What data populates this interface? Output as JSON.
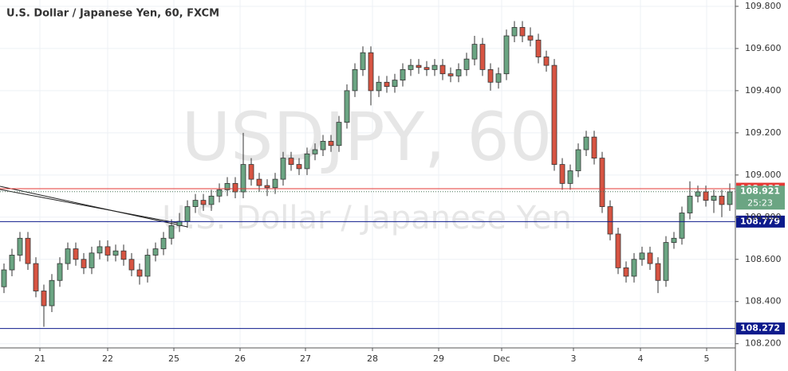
{
  "chart_data": {
    "type": "candlestick",
    "title": "U.S. Dollar / Japanese Yen, 60, FXCM",
    "watermark": "USDJPY, 60",
    "watermark_subtitle": "U.S. Dollar / Japanese Yen",
    "up_color": "#6ba583",
    "down_color": "#d75442",
    "grid": true,
    "x": [
      0,
      1,
      2,
      3,
      4,
      5,
      6,
      7,
      8,
      9,
      10,
      11,
      12,
      13,
      14,
      15,
      16,
      17,
      18,
      19,
      20,
      21,
      22,
      23,
      24,
      25,
      26,
      27,
      28,
      29,
      30,
      31,
      32,
      33,
      34,
      35,
      36,
      37,
      38,
      39,
      40,
      41,
      42,
      43,
      44,
      45,
      46,
      47,
      48,
      49,
      50,
      51,
      52,
      53,
      54,
      55,
      56,
      57,
      58,
      59,
      60,
      61,
      62,
      63,
      64,
      65,
      66,
      67,
      68,
      69,
      70,
      71,
      72,
      73,
      74,
      75,
      76,
      77,
      78,
      79,
      80,
      81,
      82,
      83,
      84,
      85,
      86,
      87,
      88,
      89,
      90,
      91
    ],
    "open": [
      108.47,
      108.55,
      108.62,
      108.7,
      108.58,
      108.45,
      108.38,
      108.5,
      108.58,
      108.65,
      108.6,
      108.56,
      108.63,
      108.66,
      108.62,
      108.64,
      108.6,
      108.55,
      108.52,
      108.62,
      108.65,
      108.7,
      108.76,
      108.78,
      108.85,
      108.88,
      108.86,
      108.9,
      108.93,
      108.96,
      108.92,
      109.05,
      108.98,
      108.95,
      108.94,
      108.98,
      109.08,
      109.05,
      109.03,
      109.1,
      109.12,
      109.16,
      109.14,
      109.25,
      109.4,
      109.5,
      109.58,
      109.4,
      109.44,
      109.42,
      109.45,
      109.5,
      109.52,
      109.51,
      109.5,
      109.52,
      109.48,
      109.47,
      109.5,
      109.55,
      109.62,
      109.5,
      109.44,
      109.48,
      109.66,
      109.7,
      109.66,
      109.64,
      109.56,
      109.52,
      109.05,
      108.96,
      109.02,
      109.12,
      109.18,
      109.08,
      108.85,
      108.72,
      108.56,
      108.52,
      108.6,
      108.63,
      108.58,
      108.5,
      108.68,
      108.7,
      108.82,
      108.9,
      108.92,
      108.88,
      108.9,
      108.86
    ],
    "high": [
      108.58,
      108.65,
      108.73,
      108.73,
      108.61,
      108.48,
      108.53,
      108.61,
      108.68,
      108.68,
      108.63,
      108.66,
      108.69,
      108.69,
      108.67,
      108.67,
      108.63,
      108.58,
      108.65,
      108.68,
      108.73,
      108.79,
      108.82,
      108.88,
      108.91,
      108.91,
      108.93,
      108.96,
      108.99,
      108.99,
      109.2,
      109.08,
      109.01,
      108.98,
      109.01,
      109.11,
      109.11,
      109.08,
      109.13,
      109.15,
      109.19,
      109.19,
      109.28,
      109.43,
      109.53,
      109.61,
      109.61,
      109.47,
      109.47,
      109.48,
      109.53,
      109.55,
      109.55,
      109.54,
      109.55,
      109.55,
      109.51,
      109.53,
      109.58,
      109.66,
      109.65,
      109.53,
      109.51,
      109.69,
      109.73,
      109.73,
      109.7,
      109.67,
      109.59,
      109.55,
      109.08,
      109.05,
      109.15,
      109.21,
      109.21,
      109.11,
      108.88,
      108.75,
      108.59,
      108.63,
      108.66,
      108.66,
      108.61,
      108.71,
      108.73,
      108.85,
      108.97,
      108.95,
      108.95,
      108.93,
      108.93,
      108.96
    ],
    "low": [
      108.44,
      108.52,
      108.59,
      108.55,
      108.42,
      108.28,
      108.35,
      108.47,
      108.55,
      108.57,
      108.53,
      108.53,
      108.6,
      108.59,
      108.59,
      108.57,
      108.52,
      108.48,
      108.49,
      108.59,
      108.62,
      108.67,
      108.73,
      108.75,
      108.82,
      108.83,
      108.83,
      108.87,
      108.9,
      108.89,
      108.89,
      108.95,
      108.92,
      108.9,
      108.91,
      108.95,
      109.02,
      109.0,
      109.0,
      109.07,
      109.09,
      109.11,
      109.11,
      109.22,
      109.37,
      109.47,
      109.33,
      109.37,
      109.39,
      109.39,
      109.42,
      109.47,
      109.48,
      109.47,
      109.47,
      109.45,
      109.44,
      109.44,
      109.47,
      109.52,
      109.47,
      109.4,
      109.41,
      109.45,
      109.63,
      109.63,
      109.61,
      109.53,
      109.49,
      109.02,
      108.93,
      108.93,
      108.99,
      109.09,
      109.05,
      108.82,
      108.69,
      108.53,
      108.49,
      108.49,
      108.57,
      108.55,
      108.44,
      108.47,
      108.65,
      108.67,
      108.79,
      108.87,
      108.85,
      108.82,
      108.8,
      108.83
    ],
    "close": [
      108.55,
      108.62,
      108.7,
      108.58,
      108.45,
      108.38,
      108.5,
      108.58,
      108.65,
      108.6,
      108.56,
      108.63,
      108.66,
      108.62,
      108.64,
      108.6,
      108.55,
      108.52,
      108.62,
      108.65,
      108.7,
      108.76,
      108.78,
      108.85,
      108.88,
      108.86,
      108.9,
      108.93,
      108.96,
      108.92,
      109.05,
      108.98,
      108.95,
      108.94,
      108.98,
      109.08,
      109.05,
      109.03,
      109.1,
      109.12,
      109.16,
      109.14,
      109.25,
      109.4,
      109.5,
      109.58,
      109.4,
      109.44,
      109.42,
      109.45,
      109.5,
      109.52,
      109.51,
      109.5,
      109.52,
      109.48,
      109.47,
      109.5,
      109.55,
      109.62,
      109.5,
      109.44,
      109.48,
      109.66,
      109.7,
      109.66,
      109.64,
      109.56,
      109.52,
      109.05,
      108.96,
      109.02,
      109.12,
      109.18,
      109.08,
      108.85,
      108.72,
      108.56,
      108.52,
      108.6,
      108.63,
      108.58,
      108.5,
      108.68,
      108.7,
      108.82,
      108.9,
      108.92,
      108.88,
      108.9,
      108.86,
      108.92
    ],
    "xlim": [
      -0.5,
      91.7
    ],
    "xticks": [
      {
        "value": 4.5,
        "label": "21"
      },
      {
        "value": 13,
        "label": "22"
      },
      {
        "value": 21.3,
        "label": "25"
      },
      {
        "value": 29.6,
        "label": "26"
      },
      {
        "value": 37.8,
        "label": "27"
      },
      {
        "value": 46.2,
        "label": "28"
      },
      {
        "value": 54.5,
        "label": "29"
      },
      {
        "value": 62.4,
        "label": "Dec"
      },
      {
        "value": 71.4,
        "label": "3"
      },
      {
        "value": 79.8,
        "label": "4"
      },
      {
        "value": 88.1,
        "label": "5"
      }
    ],
    "ylim": [
      108.18,
      109.83
    ],
    "yticks": [
      {
        "value": 108.2,
        "label": "108.200"
      },
      {
        "value": 108.4,
        "label": "108.400"
      },
      {
        "value": 108.6,
        "label": "108.600"
      },
      {
        "value": 108.8,
        "label": "108.800"
      },
      {
        "value": 109.0,
        "label": "109.000"
      },
      {
        "value": 109.2,
        "label": "109.200"
      },
      {
        "value": 109.4,
        "label": "109.400"
      },
      {
        "value": 109.6,
        "label": "109.600"
      },
      {
        "value": 109.8,
        "label": "109.800"
      }
    ],
    "levels": [
      {
        "value": 108.935,
        "color": "#e53935",
        "style": "solid"
      },
      {
        "value": 108.921,
        "color": "#6ba583",
        "style": "dotted",
        "countdown": "25:23"
      },
      {
        "value": 108.779,
        "color": "#0d1a8c",
        "style": "solid"
      },
      {
        "value": 108.272,
        "color": "#0d1a8c",
        "style": "solid"
      }
    ]
  }
}
